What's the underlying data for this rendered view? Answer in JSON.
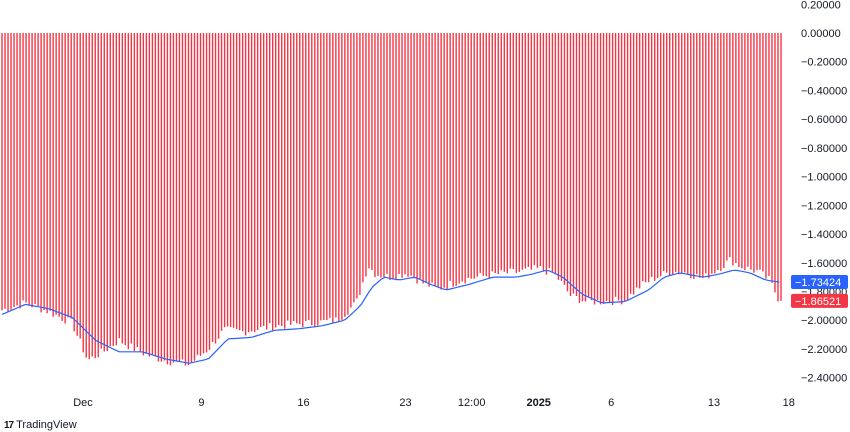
{
  "chart_data": {
    "type": "bar",
    "title": "",
    "xlabel": "",
    "ylabel": "",
    "ylim": [
      -2.5,
      0.23
    ],
    "y_ticks": [
      "0.20000",
      "0.00000",
      "−0.20000",
      "−0.40000",
      "−0.60000",
      "−0.80000",
      "−1.00000",
      "−1.20000",
      "−1.40000",
      "−1.60000",
      "−1.80000",
      "−2.00000",
      "−2.20000",
      "−2.40000"
    ],
    "y_tick_values": [
      0.2,
      0.0,
      -0.2,
      -0.4,
      -0.6,
      -0.8,
      -1.0,
      -1.2,
      -1.4,
      -1.6,
      -1.8,
      -2.0,
      -2.2,
      -2.4
    ],
    "x_ticks": [
      {
        "label": "Dec",
        "bold": false,
        "frac": 0.104
      },
      {
        "label": "9",
        "bold": false,
        "frac": 0.256
      },
      {
        "label": "16",
        "bold": false,
        "frac": 0.387
      },
      {
        "label": "23",
        "bold": false,
        "frac": 0.518
      },
      {
        "label": "12:00",
        "bold": false,
        "frac": 0.603
      },
      {
        "label": "2025",
        "bold": true,
        "frac": 0.689
      },
      {
        "label": "6",
        "bold": false,
        "frac": 0.782
      },
      {
        "label": "13",
        "bold": false,
        "frac": 0.914
      },
      {
        "label": "18",
        "bold": false,
        "frac": 1.01
      }
    ],
    "bar_series": {
      "name": "",
      "color": "#f23645",
      "base": 0,
      "keypoints": [
        [
          0.0,
          -1.93
        ],
        [
          0.03,
          -1.88
        ],
        [
          0.06,
          -1.94
        ],
        [
          0.09,
          -2.02
        ],
        [
          0.11,
          -2.28
        ],
        [
          0.13,
          -2.22
        ],
        [
          0.15,
          -2.14
        ],
        [
          0.17,
          -2.2
        ],
        [
          0.19,
          -2.25
        ],
        [
          0.21,
          -2.28
        ],
        [
          0.24,
          -2.31
        ],
        [
          0.265,
          -2.2
        ],
        [
          0.285,
          -2.07
        ],
        [
          0.31,
          -2.08
        ],
        [
          0.34,
          -2.05
        ],
        [
          0.37,
          -2.03
        ],
        [
          0.4,
          -2.02
        ],
        [
          0.43,
          -2.0
        ],
        [
          0.455,
          -1.88
        ],
        [
          0.47,
          -1.62
        ],
        [
          0.48,
          -1.68
        ],
        [
          0.5,
          -1.7
        ],
        [
          0.52,
          -1.67
        ],
        [
          0.54,
          -1.74
        ],
        [
          0.56,
          -1.78
        ],
        [
          0.59,
          -1.72
        ],
        [
          0.62,
          -1.69
        ],
        [
          0.65,
          -1.67
        ],
        [
          0.67,
          -1.66
        ],
        [
          0.69,
          -1.64
        ],
        [
          0.71,
          -1.68
        ],
        [
          0.73,
          -1.83
        ],
        [
          0.75,
          -1.87
        ],
        [
          0.77,
          -1.87
        ],
        [
          0.8,
          -1.86
        ],
        [
          0.82,
          -1.76
        ],
        [
          0.84,
          -1.7
        ],
        [
          0.86,
          -1.66
        ],
        [
          0.88,
          -1.67
        ],
        [
          0.9,
          -1.71
        ],
        [
          0.92,
          -1.64
        ],
        [
          0.935,
          -1.58
        ],
        [
          0.95,
          -1.63
        ],
        [
          0.97,
          -1.66
        ],
        [
          0.985,
          -1.72
        ],
        [
          0.998,
          -1.86521
        ]
      ]
    },
    "line_series": {
      "name": "",
      "color": "#2962ff",
      "keypoints": [
        [
          0.0,
          -1.96
        ],
        [
          0.03,
          -1.89
        ],
        [
          0.06,
          -1.92
        ],
        [
          0.09,
          -1.98
        ],
        [
          0.12,
          -2.14
        ],
        [
          0.15,
          -2.22
        ],
        [
          0.18,
          -2.22
        ],
        [
          0.21,
          -2.27
        ],
        [
          0.24,
          -2.3
        ],
        [
          0.265,
          -2.27
        ],
        [
          0.29,
          -2.13
        ],
        [
          0.32,
          -2.12
        ],
        [
          0.35,
          -2.07
        ],
        [
          0.38,
          -2.06
        ],
        [
          0.41,
          -2.04
        ],
        [
          0.44,
          -2.0
        ],
        [
          0.46,
          -1.9
        ],
        [
          0.475,
          -1.77
        ],
        [
          0.49,
          -1.7
        ],
        [
          0.51,
          -1.72
        ],
        [
          0.53,
          -1.7
        ],
        [
          0.55,
          -1.75
        ],
        [
          0.57,
          -1.79
        ],
        [
          0.6,
          -1.75
        ],
        [
          0.63,
          -1.7
        ],
        [
          0.66,
          -1.7
        ],
        [
          0.68,
          -1.68
        ],
        [
          0.7,
          -1.65
        ],
        [
          0.72,
          -1.7
        ],
        [
          0.745,
          -1.82
        ],
        [
          0.77,
          -1.88
        ],
        [
          0.8,
          -1.87
        ],
        [
          0.83,
          -1.79
        ],
        [
          0.85,
          -1.7
        ],
        [
          0.87,
          -1.67
        ],
        [
          0.9,
          -1.7
        ],
        [
          0.92,
          -1.68
        ],
        [
          0.94,
          -1.65
        ],
        [
          0.96,
          -1.67
        ],
        [
          0.98,
          -1.72
        ],
        [
          0.998,
          -1.73424
        ]
      ]
    },
    "last_values": [
      {
        "label": "−1.73424",
        "value": -1.73424,
        "color": "#2962ff"
      },
      {
        "label": "−1.86521",
        "value": -1.86521,
        "color": "#f23645"
      }
    ]
  },
  "branding": {
    "logo_mark": "17",
    "logo_text": "TradingView"
  }
}
